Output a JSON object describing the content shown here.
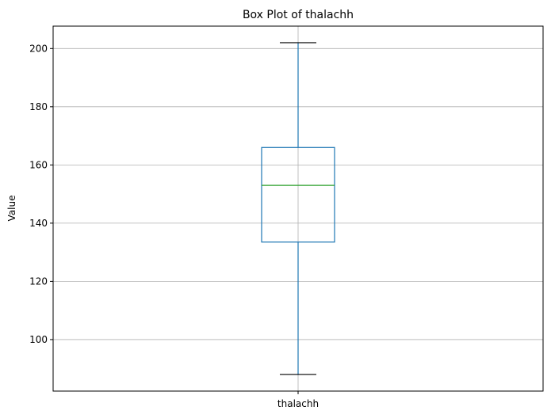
{
  "chart_data": {
    "type": "box",
    "title": "Box Plot of thalachh",
    "xlabel": "",
    "ylabel": "Value",
    "categories": [
      "thalachh"
    ],
    "ylim": [
      82.3,
      207.7
    ],
    "yticks": [
      100,
      120,
      140,
      160,
      180,
      200
    ],
    "ytick_labels": [
      "100",
      "120",
      "140",
      "160",
      "180",
      "200"
    ],
    "grid": true,
    "box": {
      "whisker_low": 88,
      "q1": 133.5,
      "median": 153,
      "q3": 166,
      "whisker_high": 202
    },
    "colors": {
      "box": "#1f77b4",
      "median": "#2ca02c",
      "caps": "#000000",
      "grid": "#b0b0b0"
    }
  }
}
